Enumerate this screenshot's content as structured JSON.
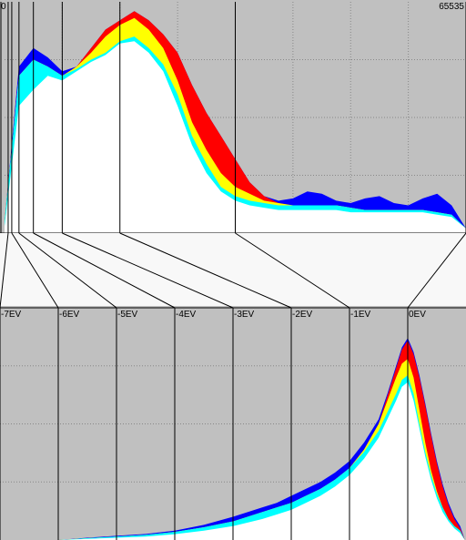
{
  "linear_panel": {
    "x_min_label": "0",
    "x_max_label": "65535"
  },
  "log_panel": {
    "ev_labels": [
      "-7EV",
      "-6EV",
      "-5EV",
      "-4EV",
      "-3EV",
      "-2EV",
      "-1EV",
      "0EV"
    ]
  },
  "colors": {
    "background": "#c0c0c0",
    "band": "#f8f8f8",
    "red": "#ff0000",
    "yellow": "#ffff00",
    "green": "#00ff00",
    "cyan": "#00ffff",
    "blue": "#0000ff",
    "magenta": "#ff00ff",
    "white": "#ffffff"
  },
  "chart_data": [
    {
      "type": "area",
      "xlim": [
        0,
        65535
      ],
      "x": [
        0,
        2048,
        4096,
        6144,
        8192,
        10240,
        12288,
        14336,
        16384,
        18432,
        20480,
        22528,
        24576,
        26624,
        28672,
        30720,
        32768,
        34816,
        36864,
        38912,
        40960,
        43008,
        45056,
        47104,
        49152,
        51200,
        53248,
        55296,
        57344,
        59392,
        61440,
        63488,
        65535
      ],
      "series": [
        {
          "color": "white",
          "values": [
            0.03,
            0.55,
            0.62,
            0.68,
            0.66,
            0.7,
            0.74,
            0.77,
            0.82,
            0.83,
            0.78,
            0.7,
            0.55,
            0.38,
            0.26,
            0.18,
            0.14,
            0.12,
            0.11,
            0.1,
            0.1,
            0.1,
            0.1,
            0.1,
            0.09,
            0.09,
            0.09,
            0.09,
            0.09,
            0.09,
            0.08,
            0.07,
            0.02
          ]
        },
        {
          "color": "cyan",
          "values": [
            0.05,
            0.68,
            0.75,
            0.72,
            0.68,
            0.71,
            0.75,
            0.78,
            0.83,
            0.85,
            0.8,
            0.73,
            0.6,
            0.42,
            0.3,
            0.2,
            0.16,
            0.14,
            0.13,
            0.12,
            0.12,
            0.12,
            0.12,
            0.12,
            0.11,
            0.1,
            0.1,
            0.1,
            0.1,
            0.1,
            0.09,
            0.08,
            0.02
          ]
        },
        {
          "color": "yellow",
          "values": [
            0.05,
            0.68,
            0.75,
            0.72,
            0.68,
            0.72,
            0.78,
            0.85,
            0.9,
            0.93,
            0.88,
            0.8,
            0.66,
            0.48,
            0.36,
            0.26,
            0.2,
            0.17,
            0.14,
            0.13,
            0.12,
            0.12,
            0.12,
            0.12,
            0.11,
            0.1,
            0.1,
            0.1,
            0.1,
            0.1,
            0.09,
            0.08,
            0.02
          ]
        },
        {
          "color": "red",
          "values": [
            0.05,
            0.68,
            0.75,
            0.72,
            0.68,
            0.72,
            0.8,
            0.88,
            0.92,
            0.96,
            0.92,
            0.86,
            0.78,
            0.64,
            0.52,
            0.42,
            0.32,
            0.22,
            0.16,
            0.13,
            0.12,
            0.12,
            0.12,
            0.12,
            0.11,
            0.1,
            0.1,
            0.1,
            0.1,
            0.1,
            0.09,
            0.08,
            0.02
          ]
        },
        {
          "color": "blue",
          "values": [
            0.05,
            0.72,
            0.8,
            0.76,
            0.7,
            0.72,
            0.8,
            0.88,
            0.92,
            0.96,
            0.92,
            0.86,
            0.78,
            0.64,
            0.52,
            0.42,
            0.32,
            0.22,
            0.16,
            0.14,
            0.15,
            0.18,
            0.17,
            0.14,
            0.13,
            0.15,
            0.16,
            0.13,
            0.12,
            0.15,
            0.17,
            0.12,
            0.02
          ]
        }
      ]
    },
    {
      "type": "area",
      "xlim": [
        -7,
        1
      ],
      "x": [
        -7,
        -6.5,
        -6,
        -5.5,
        -5,
        -4.5,
        -4,
        -3.5,
        -3,
        -2.75,
        -2.5,
        -2.25,
        -2,
        -1.75,
        -1.5,
        -1.25,
        -1,
        -0.75,
        -0.5,
        -0.35,
        -0.2,
        -0.1,
        0,
        0.1,
        0.2,
        0.3,
        0.4,
        0.5,
        0.6,
        0.7,
        0.8,
        0.9,
        0.98
      ],
      "series": [
        {
          "color": "white",
          "values": [
            0,
            0,
            0,
            0.005,
            0.01,
            0.015,
            0.025,
            0.04,
            0.06,
            0.075,
            0.09,
            0.11,
            0.13,
            0.16,
            0.19,
            0.23,
            0.28,
            0.35,
            0.44,
            0.52,
            0.6,
            0.66,
            0.68,
            0.6,
            0.48,
            0.36,
            0.26,
            0.18,
            0.12,
            0.08,
            0.05,
            0.03,
            0
          ]
        },
        {
          "color": "cyan",
          "values": [
            0,
            0,
            0,
            0.008,
            0.015,
            0.022,
            0.035,
            0.055,
            0.08,
            0.1,
            0.12,
            0.14,
            0.16,
            0.19,
            0.22,
            0.26,
            0.31,
            0.38,
            0.47,
            0.55,
            0.63,
            0.69,
            0.71,
            0.63,
            0.5,
            0.38,
            0.28,
            0.2,
            0.14,
            0.09,
            0.06,
            0.04,
            0
          ]
        },
        {
          "color": "yellow",
          "values": [
            0,
            0,
            0,
            0.008,
            0.015,
            0.022,
            0.035,
            0.055,
            0.08,
            0.1,
            0.12,
            0.14,
            0.16,
            0.19,
            0.22,
            0.26,
            0.31,
            0.39,
            0.5,
            0.6,
            0.7,
            0.76,
            0.78,
            0.7,
            0.56,
            0.42,
            0.3,
            0.21,
            0.14,
            0.09,
            0.06,
            0.04,
            0
          ]
        },
        {
          "color": "red",
          "values": [
            0,
            0,
            0,
            0.008,
            0.015,
            0.022,
            0.035,
            0.055,
            0.08,
            0.1,
            0.12,
            0.14,
            0.16,
            0.19,
            0.22,
            0.26,
            0.31,
            0.39,
            0.5,
            0.62,
            0.74,
            0.82,
            0.86,
            0.8,
            0.7,
            0.58,
            0.45,
            0.33,
            0.23,
            0.15,
            0.09,
            0.05,
            0
          ]
        },
        {
          "color": "blue",
          "values": [
            0,
            0,
            0,
            0.01,
            0.018,
            0.026,
            0.04,
            0.065,
            0.1,
            0.12,
            0.14,
            0.16,
            0.19,
            0.22,
            0.25,
            0.29,
            0.34,
            0.42,
            0.52,
            0.63,
            0.75,
            0.83,
            0.87,
            0.81,
            0.71,
            0.59,
            0.46,
            0.34,
            0.24,
            0.16,
            0.1,
            0.06,
            0
          ]
        }
      ]
    }
  ]
}
